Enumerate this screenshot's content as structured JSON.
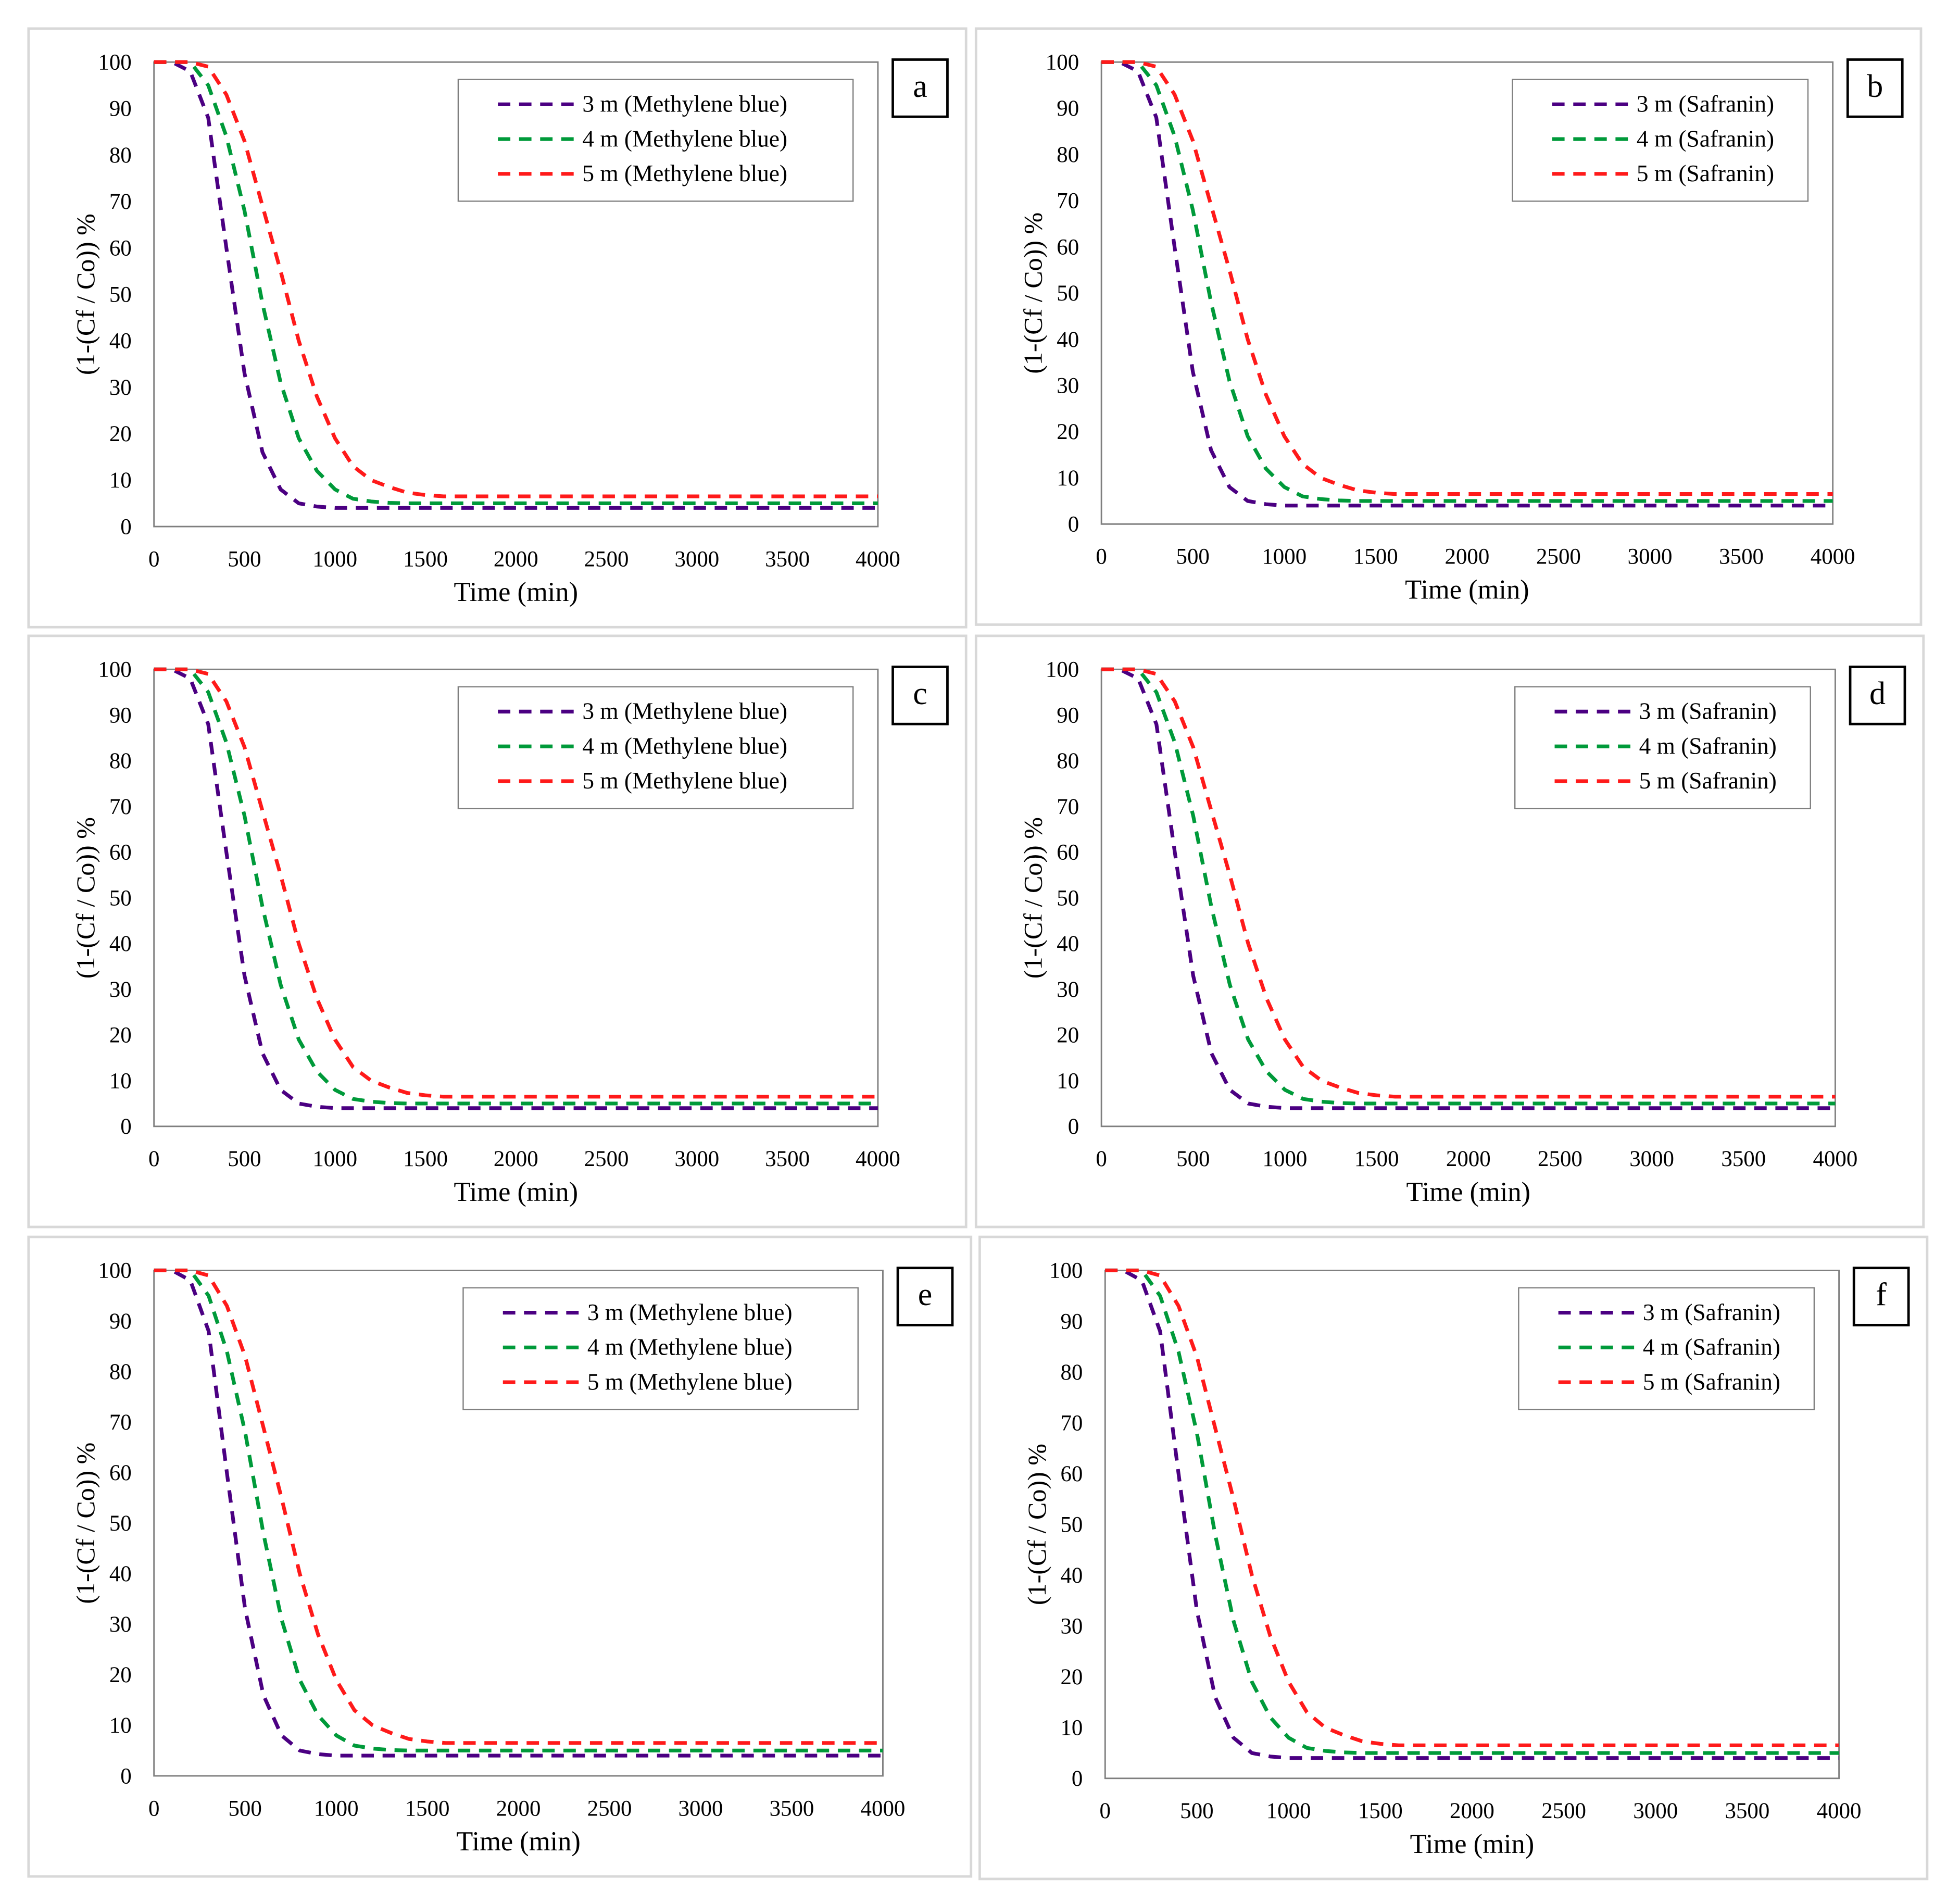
{
  "chart_data": [
    {
      "id": "a",
      "type": "line",
      "panel_label": "a",
      "xlabel": "Time (min)",
      "ylabel": "(1-(Cf / Co)) %",
      "xlim": [
        0,
        4000
      ],
      "ylim": [
        0,
        100
      ],
      "xticks": [
        0,
        500,
        1000,
        1500,
        2000,
        2500,
        3000,
        3500,
        4000
      ],
      "yticks": [
        0,
        10,
        20,
        30,
        40,
        50,
        60,
        70,
        80,
        90,
        100
      ],
      "legend_placement": "top-right",
      "grid": false,
      "series_ref": "mb"
    },
    {
      "id": "b",
      "type": "line",
      "panel_label": "b",
      "xlabel": "Time (min)",
      "ylabel": "(1-(Cf / Co)) %",
      "xlim": [
        0,
        4000
      ],
      "ylim": [
        0,
        100
      ],
      "xticks": [
        0,
        500,
        1000,
        1500,
        2000,
        2500,
        3000,
        3500,
        4000
      ],
      "yticks": [
        0,
        10,
        20,
        30,
        40,
        50,
        60,
        70,
        80,
        90,
        100
      ],
      "legend_placement": "top-right",
      "grid": false,
      "series_ref": "saf"
    },
    {
      "id": "c",
      "type": "line",
      "panel_label": "c",
      "xlabel": "Time (min)",
      "ylabel": "(1-(Cf / Co)) %",
      "xlim": [
        0,
        4000
      ],
      "ylim": [
        0,
        100
      ],
      "xticks": [
        0,
        500,
        1000,
        1500,
        2000,
        2500,
        3000,
        3500,
        4000
      ],
      "yticks": [
        0,
        10,
        20,
        30,
        40,
        50,
        60,
        70,
        80,
        90,
        100
      ],
      "legend_placement": "top-right",
      "grid": false,
      "series_ref": "mb"
    },
    {
      "id": "d",
      "type": "line",
      "panel_label": "d",
      "xlabel": "Time (min)",
      "ylabel": "(1-(Cf / Co)) %",
      "xlim": [
        0,
        4000
      ],
      "ylim": [
        0,
        100
      ],
      "xticks": [
        0,
        500,
        1000,
        1500,
        2000,
        2500,
        3000,
        3500,
        4000
      ],
      "yticks": [
        0,
        10,
        20,
        30,
        40,
        50,
        60,
        70,
        80,
        90,
        100
      ],
      "legend_placement": "top-right",
      "grid": false,
      "series_ref": "saf"
    },
    {
      "id": "e",
      "type": "line",
      "panel_label": "e",
      "xlabel": "Time (min)",
      "ylabel": "(1-(Cf / Co)) %",
      "xlim": [
        0,
        4000
      ],
      "ylim": [
        0,
        100
      ],
      "xticks": [
        0,
        500,
        1000,
        1500,
        2000,
        2500,
        3000,
        3500,
        4000
      ],
      "yticks": [
        0,
        10,
        20,
        30,
        40,
        50,
        60,
        70,
        80,
        90,
        100
      ],
      "legend_placement": "top-right",
      "grid": false,
      "series_ref": "mb"
    },
    {
      "id": "f",
      "type": "line",
      "panel_label": "f",
      "xlabel": "Time (min)",
      "ylabel": "(1-(Cf / Co)) %",
      "xlim": [
        0,
        4000
      ],
      "ylim": [
        0,
        100
      ],
      "xticks": [
        0,
        500,
        1000,
        1500,
        2000,
        2500,
        3000,
        3500,
        4000
      ],
      "yticks": [
        0,
        10,
        20,
        30,
        40,
        50,
        60,
        70,
        80,
        90,
        100
      ],
      "legend_placement": "top-right",
      "grid": false,
      "series_ref": "saf"
    }
  ],
  "x": [
    0,
    100,
    200,
    300,
    400,
    500,
    600,
    700,
    800,
    900,
    1000,
    1100,
    1200,
    1300,
    1400,
    1500,
    1600,
    2000,
    2500,
    3000,
    3500,
    4000
  ],
  "series_sets": {
    "mb": [
      {
        "name": "3 m (Methylene blue)",
        "color": "#4b0082",
        "values": [
          100,
          100,
          98,
          88,
          60,
          33,
          16,
          8,
          5,
          4.3,
          4,
          4,
          4,
          4,
          4,
          4,
          4,
          4,
          4,
          4,
          4,
          4
        ]
      },
      {
        "name": "4 m (Methylene blue)",
        "color": "#009a3a",
        "values": [
          100,
          100,
          100,
          95,
          84,
          68,
          48,
          31,
          19,
          12,
          8,
          6,
          5.4,
          5.1,
          5,
          5,
          5,
          5,
          5,
          5,
          5,
          5
        ]
      },
      {
        "name": "5 m (Methylene blue)",
        "color": "#ff1a1a",
        "values": [
          100,
          100,
          100,
          99,
          93,
          83,
          69,
          55,
          40,
          28,
          19,
          13,
          10,
          8.5,
          7.3,
          6.8,
          6.5,
          6.5,
          6.5,
          6.5,
          6.5,
          6.5
        ]
      }
    ],
    "saf": [
      {
        "name": "3 m (Safranin)",
        "color": "#4b0082",
        "values": [
          100,
          100,
          98,
          88,
          60,
          33,
          16,
          8,
          5,
          4.3,
          4,
          4,
          4,
          4,
          4,
          4,
          4,
          4,
          4,
          4,
          4,
          4
        ]
      },
      {
        "name": "4 m (Safranin)",
        "color": "#009a3a",
        "values": [
          100,
          100,
          100,
          95,
          84,
          68,
          48,
          31,
          19,
          12,
          8,
          6,
          5.4,
          5.1,
          5,
          5,
          5,
          5,
          5,
          5,
          5,
          5
        ]
      },
      {
        "name": "5 m (Safranin)",
        "color": "#ff1a1a",
        "values": [
          100,
          100,
          100,
          99,
          93,
          83,
          69,
          55,
          40,
          28,
          19,
          13,
          10,
          8.5,
          7.3,
          6.8,
          6.5,
          6.5,
          6.5,
          6.5,
          6.5,
          6.5
        ]
      }
    ]
  }
}
